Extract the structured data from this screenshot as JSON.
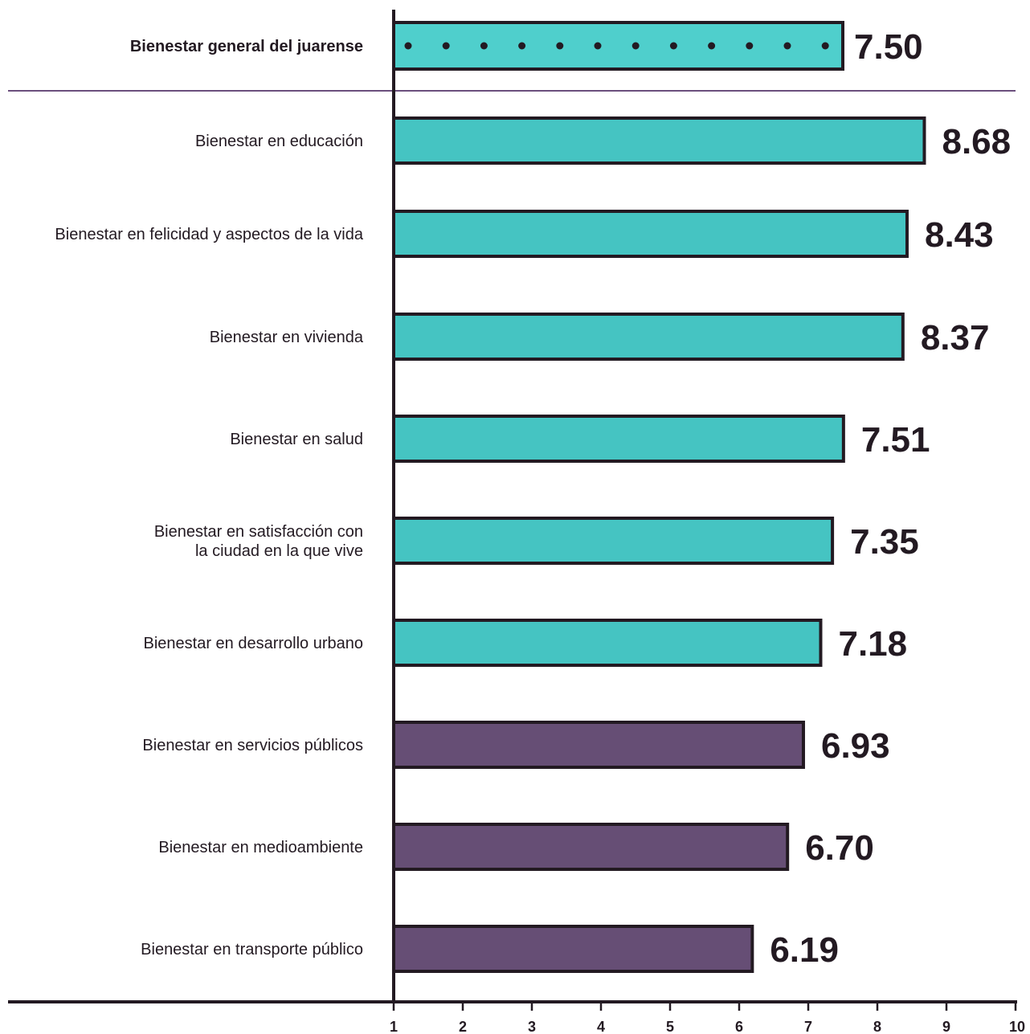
{
  "chart_data": {
    "type": "bar",
    "orientation": "horizontal",
    "title": "",
    "xlabel": "",
    "ylabel": "",
    "xlim": [
      1,
      10
    ],
    "x_ticks": [
      "1",
      "2",
      "3",
      "4",
      "5",
      "6",
      "7",
      "8",
      "9",
      "10"
    ],
    "grid": false,
    "summary": {
      "label": "Bienestar general del juarense",
      "value": 7.5,
      "value_label": "7.50",
      "color": "#4fcfcc",
      "pattern": "dots"
    },
    "categories": [
      {
        "lines": [
          "Bienestar en educación"
        ],
        "value": 8.68,
        "value_label": "8.68",
        "color": "#45c4c2"
      },
      {
        "lines": [
          "Bienestar en felicidad y aspectos de la vida"
        ],
        "value": 8.43,
        "value_label": "8.43",
        "color": "#45c4c2"
      },
      {
        "lines": [
          "Bienestar en vivienda"
        ],
        "value": 8.37,
        "value_label": "8.37",
        "color": "#45c4c2"
      },
      {
        "lines": [
          "Bienestar en salud"
        ],
        "value": 7.51,
        "value_label": "7.51",
        "color": "#45c4c2"
      },
      {
        "lines": [
          "Bienestar en satisfacción con",
          "la ciudad en la que vive"
        ],
        "value": 7.35,
        "value_label": "7.35",
        "color": "#45c4c2"
      },
      {
        "lines": [
          "Bienestar en desarrollo urbano"
        ],
        "value": 7.18,
        "value_label": "7.18",
        "color": "#45c4c2"
      },
      {
        "lines": [
          "Bienestar en servicios públicos"
        ],
        "value": 6.93,
        "value_label": "6.93",
        "color": "#664e75"
      },
      {
        "lines": [
          "Bienestar en medioambiente"
        ],
        "value": 6.7,
        "value_label": "6.70",
        "color": "#664e75"
      },
      {
        "lines": [
          "Bienestar en transporte público"
        ],
        "value": 6.19,
        "value_label": "6.19",
        "color": "#664e75"
      }
    ],
    "colors": {
      "axis": "#231a22",
      "separator": "#6b4f7d",
      "outline": "#231a22"
    }
  }
}
